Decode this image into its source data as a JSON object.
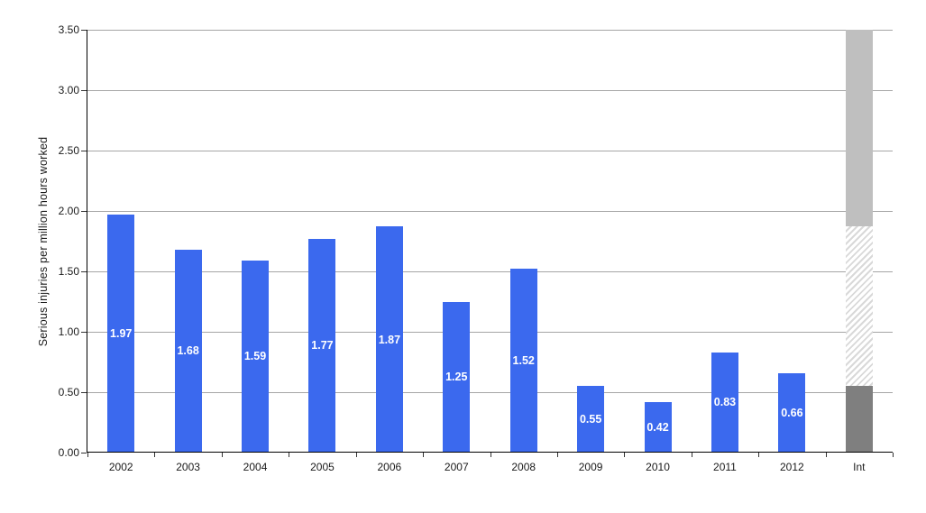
{
  "chart_data": {
    "type": "bar",
    "title": "",
    "ylabel": "Serious injuries per million hours worked",
    "xlabel": "",
    "ylim": [
      0,
      3.5
    ],
    "ytick_step": 0.5,
    "ytick_labels": [
      "0.00",
      "0.50",
      "1.00",
      "1.50",
      "2.00",
      "2.50",
      "3.00",
      "3.50"
    ],
    "grid": true,
    "legend_position": "none",
    "categories": [
      "2002",
      "2003",
      "2004",
      "2005",
      "2006",
      "2007",
      "2008",
      "2009",
      "2010",
      "2011",
      "2012",
      "Int"
    ],
    "series": [
      {
        "values": [
          1.97,
          1.68,
          1.59,
          1.77,
          1.87,
          1.25,
          1.52,
          0.55,
          0.42,
          0.83,
          0.66,
          null
        ],
        "data_labels": [
          "1.97",
          "1.68",
          "1.59",
          "1.77",
          "1.87",
          "1.25",
          "1.52",
          "0.55",
          "0.42",
          "0.83",
          "0.66",
          ""
        ]
      }
    ],
    "int_bar": {
      "category": "Int",
      "segments": [
        {
          "name": "int-segment-low-solid",
          "from": 0,
          "to": 0.55,
          "style": "solid-dark-gray"
        },
        {
          "name": "int-segment-mid-hatched",
          "from": 0.55,
          "to": 1.87,
          "style": "hatched"
        },
        {
          "name": "int-segment-high-solid",
          "from": 1.87,
          "to": 3.5,
          "style": "solid-light-gray"
        }
      ]
    },
    "colors": {
      "bar_blue": "#3b69ee",
      "bar_dark_gray": "#7f7f7f",
      "bar_light_gray": "#bfbfbf",
      "hatch_stripe_gray": "#d9d9d9",
      "gridline_gray": "#a6a6a6",
      "axis_black": "#000000",
      "data_label_white": "#ffffff",
      "tick_text": "#1a1a1a"
    }
  }
}
